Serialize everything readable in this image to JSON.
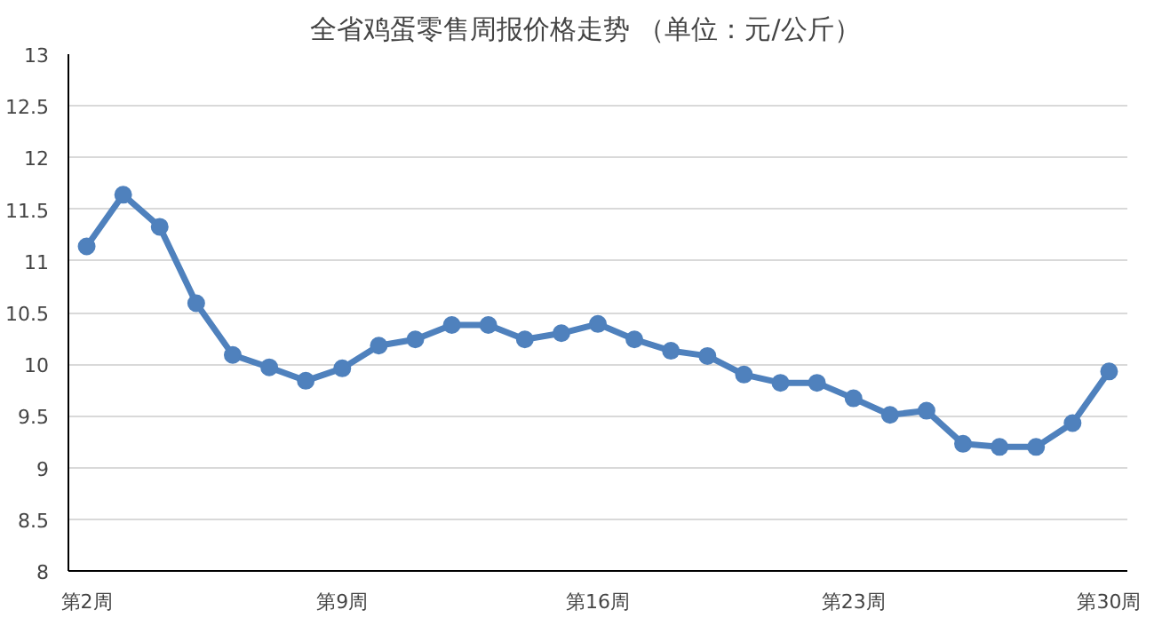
{
  "chart_data": {
    "type": "line",
    "title": "全省鸡蛋零售周报价格走势    （单位：元/公斤）",
    "categories": [
      "第2周",
      null,
      null,
      null,
      null,
      null,
      null,
      "第9周",
      null,
      null,
      null,
      null,
      null,
      null,
      "第16周",
      null,
      null,
      null,
      null,
      null,
      null,
      "第23周",
      null,
      null,
      null,
      null,
      null,
      null,
      "第30周"
    ],
    "series": [
      {
        "color": "#4f81bd",
        "values": [
          11.14,
          11.64,
          11.33,
          10.59,
          10.09,
          9.97,
          9.84,
          9.96,
          10.18,
          10.24,
          10.38,
          10.38,
          10.24,
          10.3,
          10.39,
          10.24,
          10.13,
          10.08,
          9.9,
          9.82,
          9.82,
          9.67,
          9.51,
          9.55,
          9.23,
          9.2,
          9.2,
          9.43,
          9.93
        ]
      }
    ],
    "ylim": [
      8,
      13
    ],
    "yticks": [
      8,
      8.5,
      9,
      9.5,
      10,
      10.5,
      11,
      11.5,
      12,
      12.5,
      13
    ],
    "grid": "y",
    "marker": "circle",
    "line_style": "solid"
  }
}
